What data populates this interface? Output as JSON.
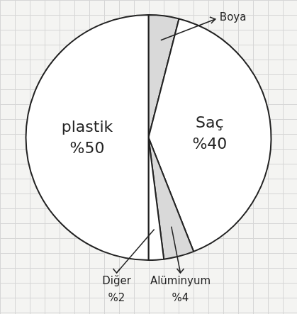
{
  "chart_data": {
    "type": "pie",
    "categories": [
      "Boya",
      "Saç",
      "Alüminyum",
      "Diğer",
      "plastik"
    ],
    "values": [
      4,
      40,
      4,
      2,
      50
    ],
    "value_labels": [
      null,
      "%40",
      "%4",
      "%2",
      "%50"
    ],
    "data_labels": true,
    "colors": [
      "#d9d9d9",
      "#ffffff",
      "#d9d9d9",
      "#ffffff",
      "#ffffff"
    ]
  }
}
